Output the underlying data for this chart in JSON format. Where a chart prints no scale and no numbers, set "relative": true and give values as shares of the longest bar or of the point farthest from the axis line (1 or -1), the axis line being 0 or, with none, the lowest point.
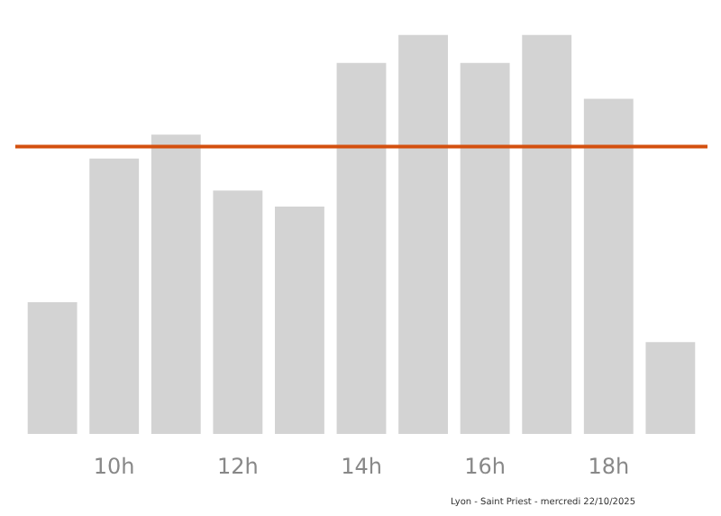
{
  "chart_data": {
    "type": "bar",
    "relative": true,
    "categories": [
      null,
      "10h",
      null,
      "12h",
      null,
      "14h",
      null,
      "16h",
      null,
      "18h",
      null
    ],
    "values": [
      0.33,
      0.69,
      0.75,
      0.61,
      0.57,
      0.93,
      1.0,
      0.93,
      1.0,
      0.84,
      0.23
    ],
    "color": "#d3d3d3",
    "ref_lines": [
      {
        "axis": "y",
        "value": 0.72,
        "color": "#d4500f"
      }
    ],
    "annotations": [
      "Lyon - Saint Priest - mercredi 22/10/2025"
    ],
    "grid": false
  }
}
